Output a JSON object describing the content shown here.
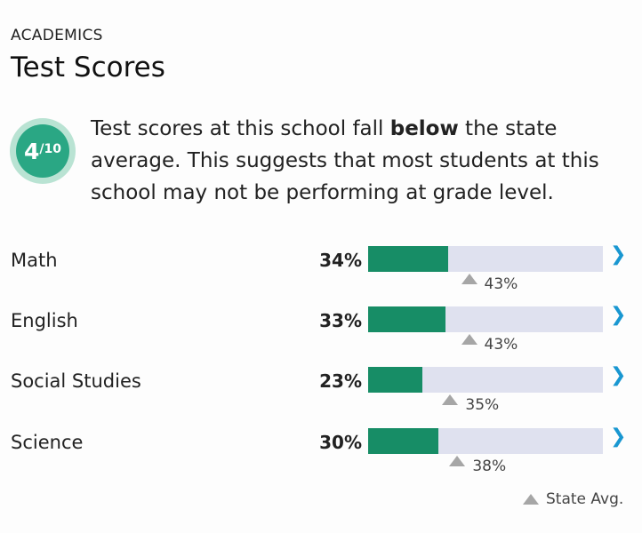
{
  "section_label": "ACADEMICS",
  "title": "Test Scores",
  "rating": {
    "score": "4",
    "out_of": "/10"
  },
  "summary": {
    "pre": "Test scores at this school fall ",
    "emphasis": "below",
    "post": " the state average. This suggests that most students at this school may not be performing at grade level."
  },
  "subjects": [
    {
      "name": "Math",
      "score_label": "34%",
      "score": 34,
      "state_label": "43%",
      "state": 43
    },
    {
      "name": "English",
      "score_label": "33%",
      "score": 33,
      "state_label": "43%",
      "state": 43
    },
    {
      "name": "Social Studies",
      "score_label": "23%",
      "score": 23,
      "state_label": "35%",
      "state": 35
    },
    {
      "name": "Science",
      "score_label": "30%",
      "score": 30,
      "state_label": "38%",
      "state": 38
    }
  ],
  "legend": {
    "label": "State Avg."
  },
  "colors": {
    "rating_ring": "#b9e3d3",
    "rating_fill": "#2aa784",
    "bar_fill": "#178d66",
    "bar_track": "#dfe1ef",
    "chevron": "#1997d1",
    "state_marker": "#a6a6a6"
  },
  "icons": {
    "chevron": "chevron-right-icon",
    "state_marker": "triangle-up-icon"
  }
}
